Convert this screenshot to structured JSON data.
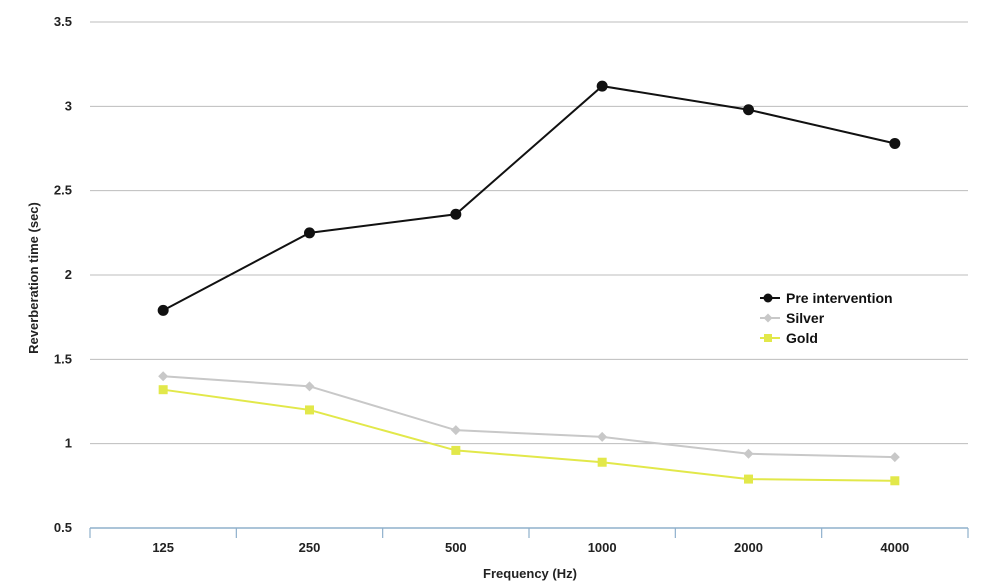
{
  "chart_data": {
    "type": "line",
    "categories": [
      "125",
      "250",
      "500",
      "1000",
      "2000",
      "4000"
    ],
    "series": [
      {
        "name": "Pre intervention",
        "values": [
          1.79,
          2.25,
          2.36,
          3.12,
          2.98,
          2.78
        ],
        "color": "#111111",
        "marker": "circle"
      },
      {
        "name": "Silver",
        "values": [
          1.4,
          1.34,
          1.08,
          1.04,
          0.94,
          0.92
        ],
        "color": "#c8c8c8",
        "marker": "diamond"
      },
      {
        "name": "Gold",
        "values": [
          1.32,
          1.2,
          0.96,
          0.89,
          0.79,
          0.78
        ],
        "color": "#e2e84a",
        "marker": "square"
      }
    ],
    "xlabel": "Frequency (Hz)",
    "ylabel": "Reverberation time (sec)",
    "ylim": [
      0.5,
      3.5
    ],
    "yticks": [
      "0.5",
      "1",
      "1.5",
      "2",
      "2.5",
      "3",
      "3.5"
    ],
    "grid": true,
    "legend_position": "right"
  }
}
